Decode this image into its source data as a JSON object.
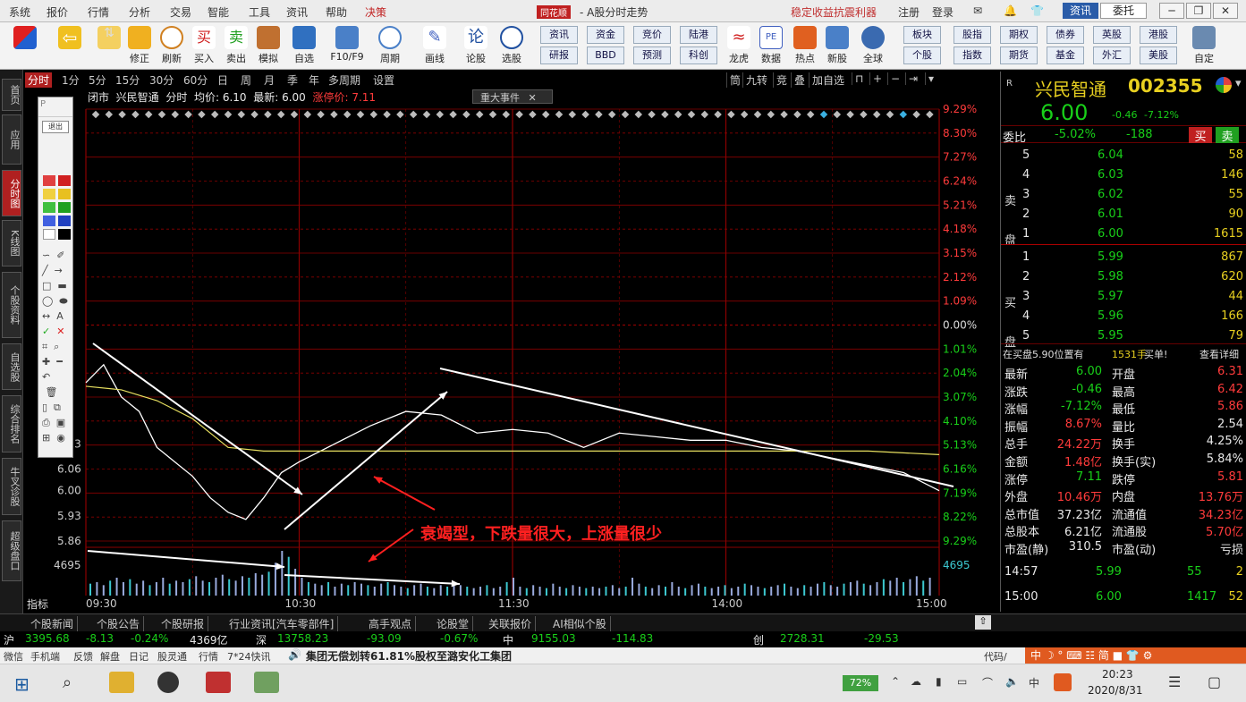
{
  "menu": {
    "items": [
      "系统",
      "报价",
      "行情",
      "分析",
      "交易",
      "智能",
      "工具",
      "资讯",
      "帮助",
      "决策"
    ],
    "logo": "同花顺",
    "window_title": "- A股分时走势",
    "promo": "稳定收益抗震利器",
    "register": "注册",
    "login": "登录",
    "btn_zixun": "资讯",
    "btn_weituo": "委托"
  },
  "toolbar": {
    "buttons": [
      "修正",
      "刷新",
      "买入",
      "卖出",
      "模拟",
      "自选",
      "F10/F9",
      "周期",
      "画线",
      "论股",
      "选股"
    ],
    "right_grid": [
      [
        "资讯",
        "资金",
        "竞价",
        "陆港",
        "龙虎",
        "PE",
        "热点",
        "新股",
        "全球"
      ],
      [
        "研报",
        "BBD",
        "预测",
        "科创",
        "龙虎",
        "数据",
        "热点",
        "新股",
        "全球"
      ]
    ],
    "far_right": [
      [
        "板块",
        "股指",
        "期权",
        "债券",
        "英股",
        "港股"
      ],
      [
        "个股",
        "指数",
        "期货",
        "基金",
        "外汇",
        "美股"
      ]
    ],
    "custom": "自定"
  },
  "leftnav": [
    "首页",
    "应用",
    "分时图",
    "K线图",
    "个股资料",
    "自选股",
    "综合排名",
    "牛叉诊股",
    "超级盘口"
  ],
  "periods": [
    "分时",
    "1分",
    "5分",
    "15分",
    "30分",
    "60分",
    "日",
    "周",
    "月",
    "季",
    "年",
    "多周期",
    "设置"
  ],
  "right_tools": [
    "筒",
    "九转",
    "竞",
    "叠",
    "加自选",
    "锁",
    "+",
    "−",
    "⇥"
  ],
  "info": {
    "status": "闭市",
    "name": "兴民智通",
    "mode": "分时",
    "avg_label": "均价:",
    "avg": "6.10",
    "last_label": "最新:",
    "last": "6.00",
    "limit_label": "涨停价:",
    "limit": "7.11"
  },
  "event_tab": "重大事件",
  "chart_data": {
    "type": "line",
    "title": "兴民智通 分时",
    "x_ticks": [
      "09:30",
      "10:30",
      "11:30",
      "14:00",
      "15:00"
    ],
    "right_pct_ticks": [
      "9.29%",
      "8.30%",
      "7.27%",
      "6.24%",
      "5.21%",
      "4.18%",
      "3.15%",
      "2.12%",
      "1.09%",
      "0.00%",
      "1.01%",
      "2.04%",
      "3.07%",
      "4.10%",
      "5.13%",
      "6.16%",
      "7.19%",
      "8.22%",
      "9.29%"
    ],
    "left_price_ticks": [
      "6.13",
      "6.06",
      "6.00",
      "5.93",
      "5.86"
    ],
    "volume_tick": "4695",
    "prev_close": 6.46,
    "price_ylim": [
      5.86,
      7.06
    ],
    "series": [
      {
        "name": "价格",
        "x": [
          0,
          5,
          10,
          15,
          20,
          25,
          30,
          35,
          40,
          45,
          50,
          55,
          60,
          70,
          80,
          90,
          100,
          110,
          120,
          130,
          140,
          150,
          160,
          170,
          180,
          190,
          200,
          210,
          220,
          230,
          240
        ],
        "values": [
          6.3,
          6.35,
          6.26,
          6.22,
          6.12,
          6.08,
          6.04,
          5.98,
          5.94,
          5.92,
          5.98,
          6.05,
          6.08,
          6.13,
          6.18,
          6.22,
          6.21,
          6.16,
          6.17,
          6.16,
          6.12,
          6.16,
          6.15,
          6.14,
          6.14,
          6.12,
          6.11,
          6.09,
          6.07,
          6.05,
          6.0
        ]
      },
      {
        "name": "均价",
        "x": [
          0,
          10,
          20,
          30,
          40,
          50,
          60,
          80,
          100,
          120,
          140,
          160,
          180,
          200,
          220,
          240
        ],
        "values": [
          6.29,
          6.28,
          6.25,
          6.2,
          6.12,
          6.11,
          6.11,
          6.11,
          6.11,
          6.11,
          6.11,
          6.11,
          6.11,
          6.11,
          6.11,
          6.1
        ]
      }
    ],
    "volume": [
      8,
      9,
      7,
      10,
      12,
      9,
      11,
      8,
      10,
      7,
      9,
      12,
      8,
      10,
      9,
      11,
      13,
      10,
      9,
      12,
      14,
      11,
      10,
      13,
      12,
      15,
      14,
      16,
      22,
      30,
      26,
      18,
      12,
      9,
      8,
      7,
      9,
      6,
      8,
      7,
      9,
      8,
      7,
      6,
      8,
      9,
      7,
      6,
      5,
      7,
      8,
      6,
      5,
      7,
      6,
      8,
      7,
      6,
      5,
      6,
      7,
      5,
      6,
      9,
      12,
      6,
      5,
      7,
      6,
      5,
      8,
      6,
      5,
      7,
      6,
      5,
      6,
      5,
      6,
      7,
      5,
      6,
      12,
      8,
      6,
      5,
      7,
      6,
      9,
      6,
      5,
      7,
      8,
      6,
      5,
      6,
      7,
      5,
      6,
      8,
      7,
      6,
      5,
      6,
      7,
      8,
      6,
      5,
      7,
      6,
      8,
      9,
      7,
      6,
      8,
      9,
      10,
      8,
      7,
      9,
      11,
      10,
      12,
      9,
      11,
      13,
      10,
      12
    ]
  },
  "annotation": "衰竭型，下跌量很大，上涨量很少",
  "quote": {
    "code_prefix": "R",
    "name": "兴民智通",
    "code": "002355",
    "price": "6.00",
    "change": "-0.46",
    "pct": "-7.12%",
    "weibi_label": "委比",
    "weibi": "-5.02%",
    "weicha": "-188",
    "buy_btn": "买",
    "sell_btn": "卖",
    "sell_label": [
      "卖",
      "盘"
    ],
    "buy_label": [
      "买",
      "盘"
    ],
    "asks": [
      {
        "lv": "5",
        "p": "6.04",
        "v": "58"
      },
      {
        "lv": "4",
        "p": "6.03",
        "v": "146"
      },
      {
        "lv": "3",
        "p": "6.02",
        "v": "55"
      },
      {
        "lv": "2",
        "p": "6.01",
        "v": "90"
      },
      {
        "lv": "1",
        "p": "6.00",
        "v": "1615"
      }
    ],
    "bids": [
      {
        "lv": "1",
        "p": "5.99",
        "v": "867"
      },
      {
        "lv": "2",
        "p": "5.98",
        "v": "620"
      },
      {
        "lv": "3",
        "p": "5.97",
        "v": "44"
      },
      {
        "lv": "4",
        "p": "5.96",
        "v": "166"
      },
      {
        "lv": "5",
        "p": "5.95",
        "v": "79"
      }
    ],
    "notice": "在买盘5.90位置有",
    "notice_v": "1531手",
    "notice_tail": "买单!",
    "notice_link": "查看详细",
    "stats": [
      [
        "最新",
        "6.00",
        "开盘",
        "6.31"
      ],
      [
        "涨跌",
        "-0.46",
        "最高",
        "6.42"
      ],
      [
        "涨幅",
        "-7.12%",
        "最低",
        "5.86"
      ],
      [
        "振幅",
        "8.67%",
        "量比",
        "2.54"
      ],
      [
        "总手",
        "24.22万",
        "换手",
        "4.25%"
      ],
      [
        "金额",
        "1.48亿",
        "换手(实)",
        "5.84%"
      ],
      [
        "涨停",
        "7.11",
        "跌停",
        "5.81"
      ],
      [
        "外盘",
        "10.46万",
        "内盘",
        "13.76万"
      ],
      [
        "总市值",
        "37.23亿",
        "流通值",
        "34.23亿"
      ],
      [
        "总股本",
        "6.21亿",
        "流通股",
        "5.70亿"
      ],
      [
        "市盈(静)",
        "310.5",
        "市盈(动)",
        "亏损"
      ]
    ],
    "ticks": [
      {
        "t": "14:57",
        "p": "5.99",
        "v": "55",
        "n": "2"
      },
      {
        "t": "15:00",
        "p": "6.00",
        "v": "1417",
        "n": "52"
      }
    ],
    "bottom_tabs": [
      "细",
      "诊",
      "K",
      "指",
      "财",
      "统",
      "价"
    ]
  },
  "newstabs": [
    "个股新闻",
    "个股公告",
    "个股研报",
    "行业资讯[汽车零部件]",
    "高手观点",
    "论股堂",
    "关联报价",
    "AI相似个股"
  ],
  "indices": {
    "sh_label": "沪",
    "sh": "3395.68",
    "sh_chg": "-8.13",
    "sh_pct": "-0.24%",
    "sh_amt": "4369亿",
    "sz_label": "深",
    "sz": "13758.23",
    "sz_chg": "-93.09",
    "sz_pct": "-0.67%",
    "zx_label": "中",
    "zx": "9155.03",
    "zx_chg": "-114.83",
    "cy_label": "创",
    "cy": "2728.31",
    "cy_chg": "-29.53"
  },
  "status": {
    "items": [
      "微信",
      "手机端",
      "反馈",
      "解盘",
      "日记",
      "股灵通",
      "行情",
      "7*24快讯"
    ],
    "ticker": "集团无偿划转61.81%股权至潞安化工集团",
    "proxy": "代码/"
  },
  "taskbar": {
    "battery": "72%",
    "time": "20:23",
    "date": "2020/8/31",
    "ime": "中"
  },
  "colors": {
    "up": "#ff3b3b",
    "down": "#19d019",
    "price_line": "#ffffff",
    "avg_line": "#e8e060",
    "grid": "#8b0000",
    "accent": "#b02020"
  }
}
